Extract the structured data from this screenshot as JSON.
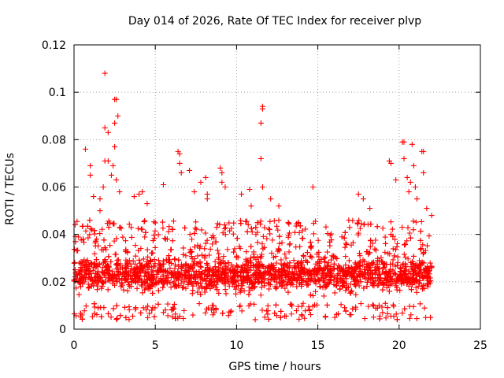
{
  "chart_data": {
    "type": "scatter",
    "title": "Day 014 of 2026, Rate Of TEC Index for receiver plvp",
    "xlabel": "GPS time / hours",
    "ylabel": "ROTI / TECUs",
    "xlim": [
      0,
      25
    ],
    "ylim": [
      0,
      0.12
    ],
    "x_ticks": [
      0,
      5,
      10,
      15,
      20,
      25
    ],
    "x_tick_labels": [
      "0",
      "5",
      "10",
      "15",
      "20",
      "25"
    ],
    "y_ticks": [
      0,
      0.02,
      0.04,
      0.06,
      0.08,
      0.1,
      0.12
    ],
    "y_tick_labels": [
      "0",
      "0.02",
      "0.04",
      "0.06",
      "0.08",
      "0.1",
      "0.12"
    ],
    "grid": true,
    "marker": "+",
    "color": "#ff0000",
    "data_range_hours": [
      0,
      22
    ],
    "typical_band": [
      0.008,
      0.04
    ],
    "outliers": [
      [
        0.7,
        0.076
      ],
      [
        1.0,
        0.069
      ],
      [
        1.0,
        0.065
      ],
      [
        1.2,
        0.056
      ],
      [
        1.6,
        0.055
      ],
      [
        1.6,
        0.05
      ],
      [
        1.8,
        0.06
      ],
      [
        1.9,
        0.108
      ],
      [
        1.9,
        0.085
      ],
      [
        1.9,
        0.071
      ],
      [
        2.1,
        0.083
      ],
      [
        2.1,
        0.071
      ],
      [
        2.3,
        0.065
      ],
      [
        2.4,
        0.069
      ],
      [
        2.5,
        0.097
      ],
      [
        2.6,
        0.097
      ],
      [
        2.5,
        0.077
      ],
      [
        2.5,
        0.087
      ],
      [
        2.7,
        0.09
      ],
      [
        2.6,
        0.063
      ],
      [
        2.8,
        0.058
      ],
      [
        3.7,
        0.056
      ],
      [
        4.0,
        0.057
      ],
      [
        4.2,
        0.058
      ],
      [
        4.5,
        0.053
      ],
      [
        5.5,
        0.061
      ],
      [
        6.4,
        0.075
      ],
      [
        6.5,
        0.074
      ],
      [
        6.5,
        0.07
      ],
      [
        6.6,
        0.066
      ],
      [
        7.1,
        0.067
      ],
      [
        7.4,
        0.058
      ],
      [
        7.8,
        0.062
      ],
      [
        8.1,
        0.064
      ],
      [
        8.2,
        0.055
      ],
      [
        8.2,
        0.057
      ],
      [
        9.0,
        0.068
      ],
      [
        9.1,
        0.066
      ],
      [
        9.1,
        0.062
      ],
      [
        9.3,
        0.06
      ],
      [
        10.3,
        0.057
      ],
      [
        10.8,
        0.059
      ],
      [
        10.9,
        0.052
      ],
      [
        11.5,
        0.087
      ],
      [
        11.6,
        0.093
      ],
      [
        11.6,
        0.094
      ],
      [
        11.5,
        0.072
      ],
      [
        11.6,
        0.06
      ],
      [
        12.1,
        0.055
      ],
      [
        12.6,
        0.052
      ],
      [
        14.7,
        0.06
      ],
      [
        16.9,
        0.046
      ],
      [
        17.5,
        0.057
      ],
      [
        17.8,
        0.055
      ],
      [
        18.2,
        0.051
      ],
      [
        19.4,
        0.071
      ],
      [
        19.5,
        0.07
      ],
      [
        19.8,
        0.063
      ],
      [
        20.2,
        0.079
      ],
      [
        20.3,
        0.079
      ],
      [
        20.3,
        0.072
      ],
      [
        20.5,
        0.064
      ],
      [
        20.6,
        0.058
      ],
      [
        20.7,
        0.062
      ],
      [
        20.8,
        0.078
      ],
      [
        20.9,
        0.069
      ],
      [
        21.0,
        0.06
      ],
      [
        21.1,
        0.055
      ],
      [
        21.4,
        0.075
      ],
      [
        21.5,
        0.075
      ],
      [
        21.5,
        0.066
      ],
      [
        21.7,
        0.051
      ],
      [
        22.0,
        0.048
      ]
    ]
  }
}
